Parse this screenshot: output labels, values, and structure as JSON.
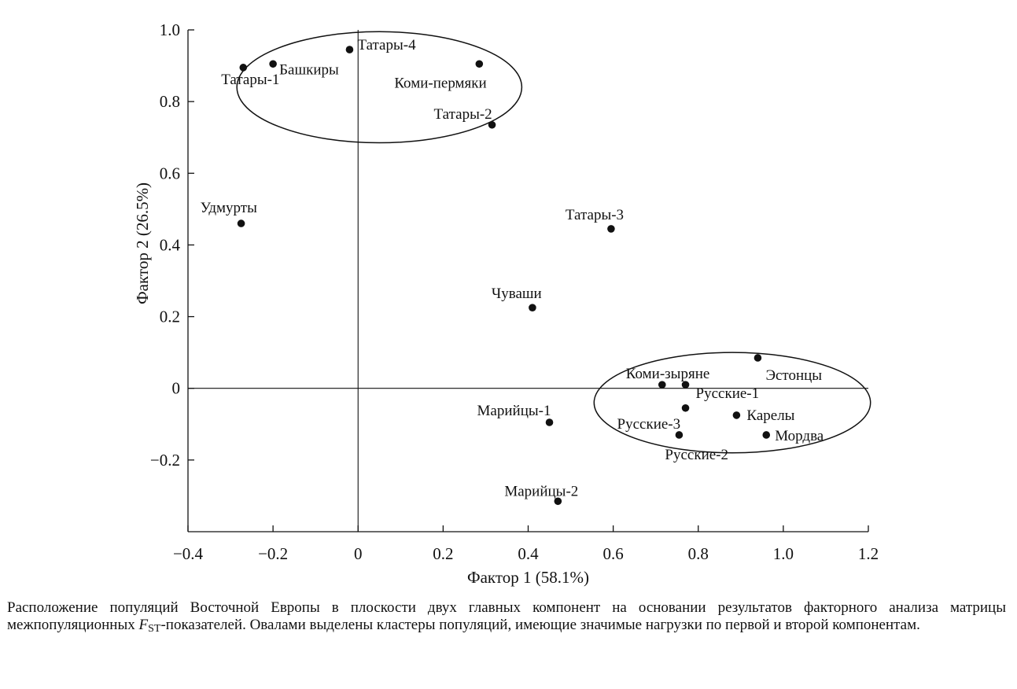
{
  "chart_data": {
    "type": "scatter",
    "xlabel": "Фактор 1 (58.1%)",
    "ylabel": "Фактор 2 (26.5%)",
    "xlim": [
      -0.4,
      1.2
    ],
    "ylim": [
      -0.4,
      1.0
    ],
    "xticks": [
      -0.4,
      -0.2,
      0,
      0.2,
      0.4,
      0.6,
      0.8,
      1.0,
      1.2
    ],
    "yticks": [
      -0.2,
      0,
      0.2,
      0.4,
      0.6,
      0.8,
      1.0
    ],
    "xtick_labels": [
      "−0.4",
      "−0.2",
      "0",
      "0.2",
      "0.4",
      "0.6",
      "0.8",
      "1.0",
      "1.2"
    ],
    "ytick_labels": [
      "−0.2",
      "0",
      "0.2",
      "0.4",
      "0.6",
      "0.8",
      "1.0"
    ],
    "zero_lines": true,
    "grid": false,
    "points": [
      {
        "label": "Татары-4",
        "x": -0.02,
        "y": 0.945
      },
      {
        "label": "Башкиры",
        "x": -0.2,
        "y": 0.905
      },
      {
        "label": "Татары-1",
        "x": -0.27,
        "y": 0.895
      },
      {
        "label": "Коми-пермяки",
        "x": 0.285,
        "y": 0.905
      },
      {
        "label": "Татары-2",
        "x": 0.315,
        "y": 0.735
      },
      {
        "label": "Удмурты",
        "x": -0.275,
        "y": 0.46
      },
      {
        "label": "Татары-3",
        "x": 0.595,
        "y": 0.445
      },
      {
        "label": "Чуваши",
        "x": 0.41,
        "y": 0.225
      },
      {
        "label": "Эстонцы",
        "x": 0.94,
        "y": 0.085
      },
      {
        "label": "Коми-зыряне",
        "x": 0.715,
        "y": 0.01
      },
      {
        "label": "Русские-1",
        "x": 0.77,
        "y": 0.01
      },
      {
        "label": "Русские-3",
        "x": 0.77,
        "y": -0.055
      },
      {
        "label": "Карелы",
        "x": 0.89,
        "y": -0.075
      },
      {
        "label": "Марийцы-1",
        "x": 0.45,
        "y": -0.095
      },
      {
        "label": "Русские-2",
        "x": 0.755,
        "y": -0.13
      },
      {
        "label": "Мордва",
        "x": 0.96,
        "y": -0.13
      },
      {
        "label": "Марийцы-2",
        "x": 0.47,
        "y": -0.315
      }
    ],
    "clusters": [
      {
        "cx": 0.05,
        "cy": 0.84,
        "rx": 0.335,
        "ry": 0.155
      },
      {
        "cx": 0.88,
        "cy": -0.04,
        "rx": 0.325,
        "ry": 0.14
      }
    ]
  },
  "caption": {
    "part1": "Расположение популяций Восточной Европы в плоскости двух главных компонент на основании результатов факторного анализа матрицы межпопуляционных ",
    "fst_symbol": "F",
    "fst_sub": "ST",
    "part2": "-показателей. Овалами выделены кластеры популяций, имеющие значимые нагрузки по первой и второй компонентам."
  }
}
